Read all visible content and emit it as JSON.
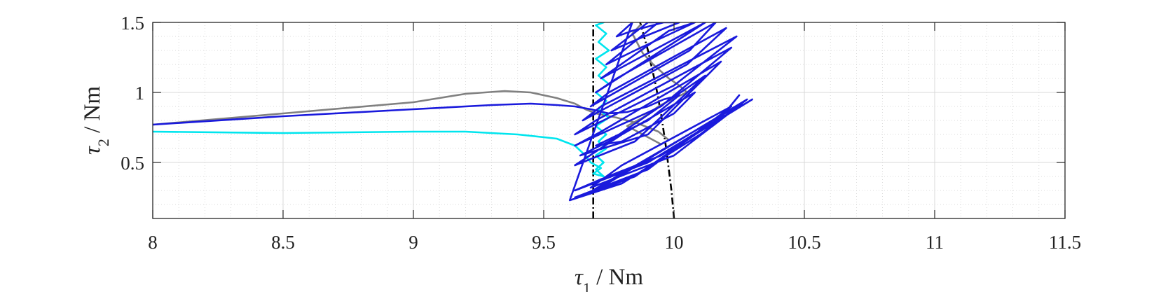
{
  "chart_data": {
    "type": "line",
    "title": "",
    "xlabel": {
      "symbol": "τ",
      "subscript": "1",
      "unit": " / Nm"
    },
    "ylabel": {
      "symbol": "τ",
      "subscript": "2",
      "unit": " / Nm"
    },
    "xlim": [
      8,
      11.5
    ],
    "ylim": [
      0.1,
      1.5
    ],
    "xticks": [
      8,
      8.5,
      9,
      9.5,
      10,
      10.5,
      11,
      11.5
    ],
    "xtick_labels": [
      "8",
      "8.5",
      "9",
      "9.5",
      "10",
      "10.5",
      "11",
      "11.5"
    ],
    "yticks": [
      0.5,
      1,
      1.5
    ],
    "ytick_labels": [
      "0.5",
      "1",
      "1.5"
    ],
    "grid": true,
    "minor_grid": true,
    "legend": "none",
    "series": [
      {
        "color": "#808080",
        "points": [
          [
            8.0,
            0.77
          ],
          [
            8.5,
            0.85
          ],
          [
            9.0,
            0.93
          ],
          [
            9.2,
            0.99
          ],
          [
            9.35,
            1.01
          ],
          [
            9.45,
            1.0
          ],
          [
            9.55,
            0.96
          ],
          [
            9.62,
            0.92
          ],
          [
            9.66,
            0.88
          ],
          [
            9.7,
            0.85
          ],
          [
            9.78,
            0.82
          ],
          [
            9.86,
            0.78
          ],
          [
            9.94,
            0.72
          ],
          [
            9.98,
            0.66
          ],
          [
            9.95,
            0.63
          ],
          [
            9.88,
            0.7
          ],
          [
            9.82,
            0.76
          ],
          [
            9.88,
            0.82
          ],
          [
            9.94,
            0.9
          ],
          [
            10.0,
            0.96
          ],
          [
            10.05,
            1.0
          ],
          [
            10.02,
            1.05
          ],
          [
            9.98,
            1.1
          ],
          [
            9.92,
            1.2
          ],
          [
            9.88,
            1.28
          ],
          [
            9.86,
            1.35
          ],
          [
            9.84,
            1.42
          ],
          [
            9.87,
            1.48
          ]
        ]
      },
      {
        "color": "#00e5ee",
        "points": [
          [
            8.0,
            0.72
          ],
          [
            8.5,
            0.71
          ],
          [
            9.0,
            0.72
          ],
          [
            9.2,
            0.72
          ],
          [
            9.4,
            0.7
          ],
          [
            9.55,
            0.67
          ],
          [
            9.62,
            0.62
          ],
          [
            9.66,
            0.55
          ],
          [
            9.68,
            0.5
          ],
          [
            9.72,
            0.46
          ],
          [
            9.69,
            0.42
          ],
          [
            9.73,
            0.4
          ],
          [
            9.7,
            0.45
          ],
          [
            9.73,
            0.5
          ],
          [
            9.7,
            0.55
          ],
          [
            9.74,
            0.6
          ],
          [
            9.71,
            0.65
          ],
          [
            9.74,
            0.7
          ],
          [
            9.7,
            0.76
          ],
          [
            9.75,
            0.82
          ],
          [
            9.71,
            0.88
          ],
          [
            9.74,
            0.94
          ],
          [
            9.7,
            1.0
          ],
          [
            9.75,
            1.06
          ],
          [
            9.71,
            1.12
          ],
          [
            9.74,
            1.18
          ],
          [
            9.7,
            1.24
          ],
          [
            9.75,
            1.3
          ],
          [
            9.71,
            1.36
          ],
          [
            9.74,
            1.42
          ],
          [
            9.7,
            1.48
          ],
          [
            9.73,
            1.5
          ]
        ]
      },
      {
        "color": "#1a1adc",
        "points": [
          [
            8.0,
            0.77
          ],
          [
            8.5,
            0.83
          ],
          [
            9.0,
            0.88
          ],
          [
            9.3,
            0.91
          ],
          [
            9.45,
            0.92
          ],
          [
            9.55,
            0.91
          ],
          [
            9.62,
            0.9
          ],
          [
            9.68,
            0.88
          ],
          [
            9.75,
            0.85
          ],
          [
            9.82,
            0.86
          ],
          [
            9.9,
            0.9
          ],
          [
            9.96,
            0.95
          ],
          [
            10.02,
            0.98
          ],
          [
            9.9,
            0.8
          ],
          [
            9.7,
            0.62
          ],
          [
            9.8,
            0.65
          ],
          [
            10.0,
            0.85
          ],
          [
            10.08,
            1.0
          ],
          [
            9.8,
            0.7
          ],
          [
            9.62,
            0.48
          ],
          [
            9.85,
            0.65
          ],
          [
            10.12,
            1.12
          ],
          [
            9.75,
            0.65
          ],
          [
            9.64,
            0.55
          ],
          [
            9.9,
            0.7
          ],
          [
            10.18,
            1.22
          ],
          [
            9.72,
            0.72
          ],
          [
            9.62,
            0.62
          ],
          [
            9.95,
            0.9
          ],
          [
            10.22,
            1.32
          ],
          [
            9.7,
            0.8
          ],
          [
            9.62,
            0.7
          ],
          [
            10.0,
            1.05
          ],
          [
            10.24,
            1.4
          ],
          [
            9.72,
            0.9
          ],
          [
            9.65,
            0.8
          ],
          [
            10.05,
            1.2
          ],
          [
            10.2,
            1.46
          ],
          [
            9.75,
            1.0
          ],
          [
            9.68,
            0.9
          ],
          [
            10.06,
            1.3
          ],
          [
            10.16,
            1.5
          ],
          [
            9.78,
            1.1
          ],
          [
            9.7,
            1.0
          ],
          [
            10.02,
            1.38
          ],
          [
            10.12,
            1.5
          ],
          [
            9.82,
            1.2
          ],
          [
            9.72,
            1.1
          ],
          [
            9.98,
            1.44
          ],
          [
            10.08,
            1.5
          ],
          [
            9.85,
            1.3
          ],
          [
            9.74,
            1.2
          ],
          [
            9.94,
            1.5
          ],
          [
            10.02,
            1.5
          ],
          [
            9.86,
            1.38
          ],
          [
            9.76,
            1.3
          ],
          [
            9.9,
            1.5
          ],
          [
            9.96,
            1.5
          ],
          [
            9.84,
            1.44
          ],
          [
            9.78,
            1.4
          ],
          [
            9.84,
            1.5
          ],
          [
            9.6,
            0.23
          ],
          [
            9.8,
            0.35
          ],
          [
            10.1,
            0.7
          ],
          [
            10.28,
            0.95
          ],
          [
            9.7,
            0.3
          ],
          [
            9.62,
            0.25
          ],
          [
            9.9,
            0.45
          ],
          [
            10.22,
            0.9
          ],
          [
            9.8,
            0.48
          ],
          [
            9.68,
            0.32
          ],
          [
            10.0,
            0.55
          ],
          [
            10.26,
            0.92
          ],
          [
            9.66,
            0.27
          ],
          [
            9.85,
            0.4
          ],
          [
            10.12,
            0.75
          ],
          [
            10.3,
            0.95
          ],
          [
            9.95,
            0.55
          ],
          [
            9.72,
            0.38
          ],
          [
            9.62,
            0.3
          ],
          [
            9.9,
            0.5
          ],
          [
            10.18,
            0.82
          ],
          [
            10.25,
            0.98
          ]
        ]
      }
    ],
    "reference_lines": [
      {
        "color": "#000000",
        "style": "dash-dot",
        "points": [
          [
            9.69,
            0.1
          ],
          [
            9.69,
            0.5
          ],
          [
            9.69,
            1.0
          ],
          [
            9.69,
            1.5
          ]
        ]
      },
      {
        "color": "#000000",
        "style": "dash-dot",
        "points": [
          [
            10.0,
            0.1
          ],
          [
            9.99,
            0.3
          ],
          [
            9.97,
            0.6
          ],
          [
            9.95,
            0.85
          ],
          [
            9.93,
            1.05
          ],
          [
            9.9,
            1.3
          ],
          [
            9.87,
            1.5
          ]
        ]
      }
    ]
  }
}
